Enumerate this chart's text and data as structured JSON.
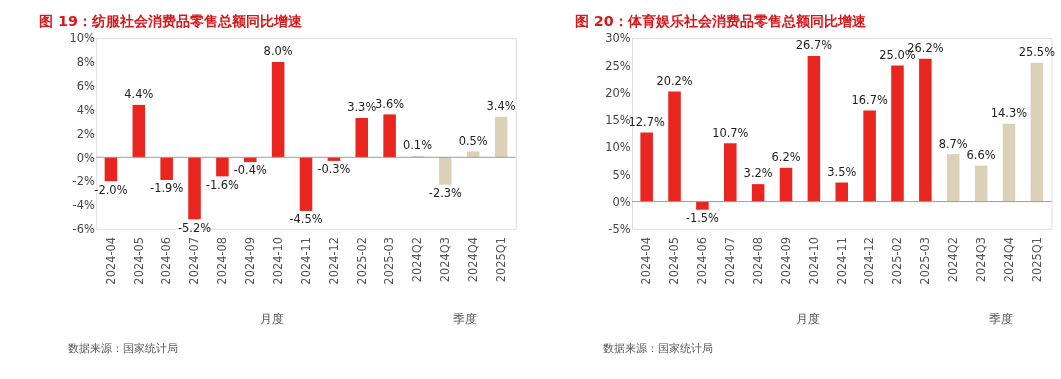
{
  "chart_data": [
    {
      "type": "bar",
      "title": "图 19：纺服社会消费品零售总额同比增速",
      "categories": [
        "2024-04",
        "2024-05",
        "2024-06",
        "2024-07",
        "2024-08",
        "2024-09",
        "2024-10",
        "2024-11",
        "2024-12",
        "2025-02",
        "2025-03",
        "2024Q2",
        "2024Q3",
        "2024Q4",
        "2025Q1"
      ],
      "values": [
        -2.0,
        4.4,
        -1.9,
        -5.2,
        -1.6,
        -0.4,
        8.0,
        -4.5,
        -0.3,
        3.3,
        3.6,
        0.1,
        -2.3,
        0.5,
        3.4
      ],
      "colors": [
        "#e8251f",
        "#e8251f",
        "#e8251f",
        "#e8251f",
        "#e8251f",
        "#e8251f",
        "#e8251f",
        "#e8251f",
        "#e8251f",
        "#e8251f",
        "#e8251f",
        "#ddd0b8",
        "#ddd0b8",
        "#ddd0b8",
        "#ddd0b8"
      ],
      "value_labels": [
        "-2.0%",
        "4.4%",
        "-1.9%",
        "-5.2%",
        "-1.6%",
        "-0.4%",
        "8.0%",
        "-4.5%",
        "-0.3%",
        "3.3%",
        "3.6%",
        "0.1%",
        "-2.3%",
        "0.5%",
        "3.4%"
      ],
      "ylim": [
        -6,
        10
      ],
      "yticks": [
        {
          "value": -6,
          "label": "-6%"
        },
        {
          "value": -4,
          "label": "-4%"
        },
        {
          "value": -2,
          "label": "-2%"
        },
        {
          "value": 0,
          "label": "0%"
        },
        {
          "value": 2,
          "label": "2%"
        },
        {
          "value": 4,
          "label": "4%"
        },
        {
          "value": 6,
          "label": "6%"
        },
        {
          "value": 8,
          "label": "8%"
        },
        {
          "value": 10,
          "label": "10%"
        }
      ],
      "ref_lines": [
        {
          "axis": "y",
          "value": 0,
          "color": "#999999"
        }
      ],
      "grid": false,
      "annotations": [
        "月度",
        "季度",
        "数据来源：国家统计局"
      ]
    },
    {
      "type": "bar",
      "title": "图 20：体育娱乐社会消费品零售总额同比增速",
      "categories": [
        "2024-04",
        "2024-05",
        "2024-06",
        "2024-07",
        "2024-08",
        "2024-09",
        "2024-10",
        "2024-11",
        "2024-12",
        "2025-02",
        "2025-03",
        "2024Q2",
        "2024Q3",
        "2024Q4",
        "2025Q1"
      ],
      "values": [
        12.7,
        20.2,
        -1.5,
        10.7,
        3.2,
        6.2,
        26.7,
        3.5,
        16.7,
        25.0,
        26.2,
        8.7,
        6.6,
        14.3,
        25.5
      ],
      "colors": [
        "#e8251f",
        "#e8251f",
        "#e8251f",
        "#e8251f",
        "#e8251f",
        "#e8251f",
        "#e8251f",
        "#e8251f",
        "#e8251f",
        "#e8251f",
        "#e8251f",
        "#ddd0b8",
        "#ddd0b8",
        "#ddd0b8",
        "#ddd0b8"
      ],
      "value_labels": [
        "12.7%",
        "20.2%",
        "-1.5%",
        "10.7%",
        "3.2%",
        "6.2%",
        "26.7%",
        "3.5%",
        "16.7%",
        "25.0%",
        "26.2%",
        "8.7%",
        "6.6%",
        "14.3%",
        "25.5%"
      ],
      "ylim": [
        -5,
        30
      ],
      "yticks": [
        {
          "value": -5,
          "label": "-5%"
        },
        {
          "value": 0,
          "label": "0%"
        },
        {
          "value": 5,
          "label": "5%"
        },
        {
          "value": 10,
          "label": "10%"
        },
        {
          "value": 15,
          "label": "15%"
        },
        {
          "value": 20,
          "label": "20%"
        },
        {
          "value": 25,
          "label": "25%"
        },
        {
          "value": 30,
          "label": "30%"
        }
      ],
      "ref_lines": [
        {
          "axis": "y",
          "value": 0,
          "color": "#999999"
        }
      ],
      "grid": false,
      "annotations": [
        "月度",
        "季度",
        "数据来源：国家统计局"
      ]
    }
  ]
}
